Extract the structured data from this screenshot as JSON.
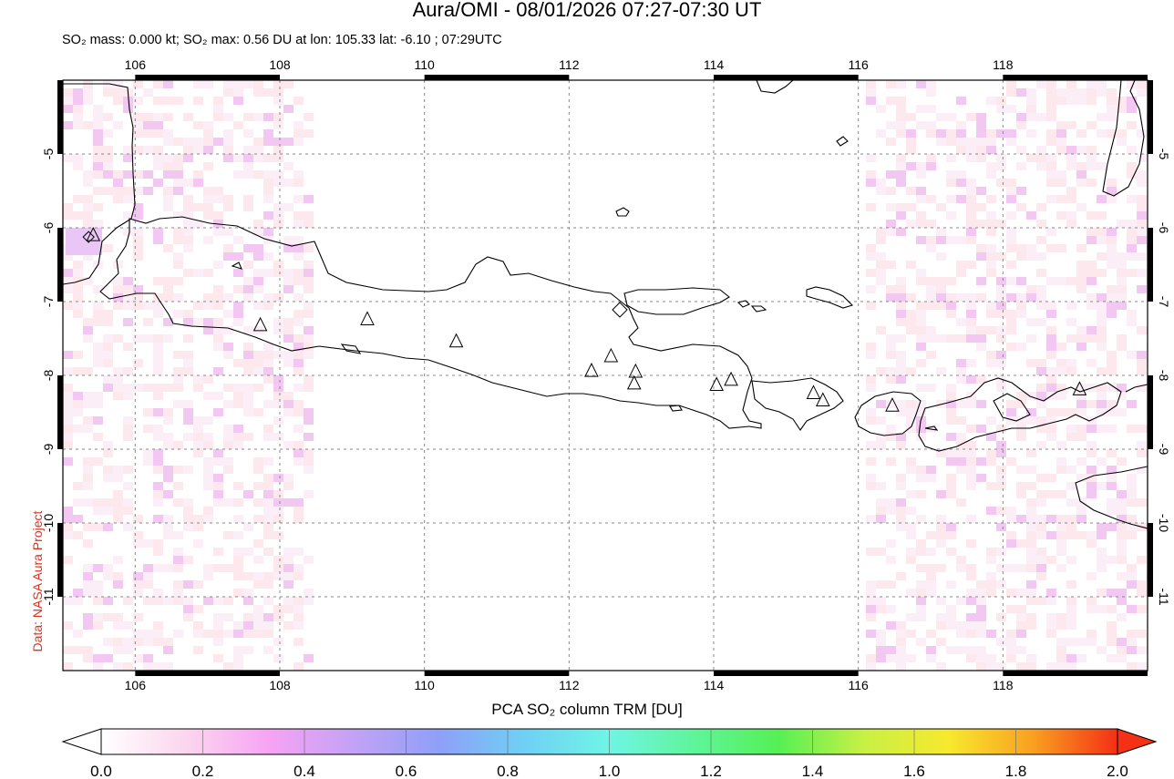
{
  "title": "Aura/OMI - 08/01/2026 07:27-07:30 UT",
  "subtitle": "SO₂ mass: 0.000 kt; SO₂ max: 0.56 DU at lon: 105.33 lat: -6.10 ; 07:29UTC",
  "credit": "Data: NASA Aura Project",
  "map": {
    "lon_range": [
      105,
      120
    ],
    "lat_range": [
      -12,
      -4
    ],
    "lon_ticks": [
      "106",
      "108",
      "110",
      "112",
      "114",
      "116",
      "118"
    ],
    "lat_ticks": [
      "-5",
      "-6",
      "-7",
      "-8",
      "-9",
      "-10",
      "-11"
    ],
    "grid": true,
    "max_marker": {
      "lon": 105.33,
      "lat": -6.1
    },
    "volcanoes": [
      {
        "lon": 105.42,
        "lat": -6.1
      },
      {
        "lon": 107.73,
        "lat": -7.32
      },
      {
        "lon": 109.21,
        "lat": -7.24
      },
      {
        "lon": 110.44,
        "lat": -7.54
      },
      {
        "lon": 112.31,
        "lat": -7.94
      },
      {
        "lon": 112.58,
        "lat": -7.74
      },
      {
        "lon": 112.92,
        "lat": -7.95
      },
      {
        "lon": 112.9,
        "lat": -8.11
      },
      {
        "lon": 114.04,
        "lat": -8.13
      },
      {
        "lon": 114.24,
        "lat": -8.06
      },
      {
        "lon": 115.38,
        "lat": -8.24
      },
      {
        "lon": 115.51,
        "lat": -8.34
      },
      {
        "lon": 116.47,
        "lat": -8.41
      },
      {
        "lon": 119.06,
        "lat": -8.19
      }
    ]
  },
  "colorbar": {
    "title": "PCA SO₂ column TRM [DU]",
    "ticks": [
      "0.0",
      "0.2",
      "0.4",
      "0.6",
      "0.8",
      "1.0",
      "1.2",
      "1.4",
      "1.6",
      "1.8",
      "2.0"
    ],
    "colors": [
      "#ffffff",
      "#fbd6ee",
      "#f6a3f4",
      "#c2a2f5",
      "#8ea0f8",
      "#6fd0f5",
      "#6ff5e5",
      "#5ef59a",
      "#55f055",
      "#c8f045",
      "#f7e92e",
      "#f9a020",
      "#f43015"
    ]
  }
}
